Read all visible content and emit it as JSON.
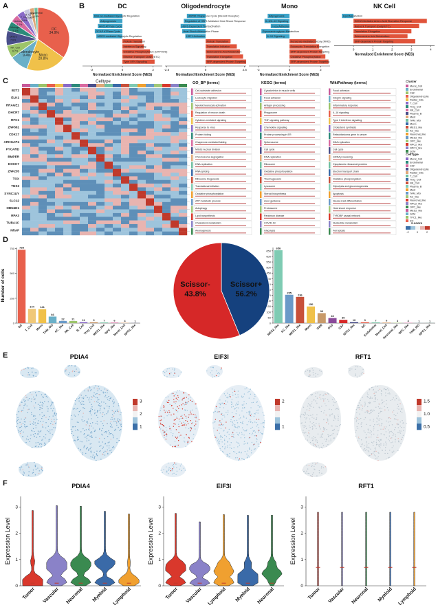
{
  "panels": {
    "A": "A",
    "B": "B",
    "C": "C",
    "D": "D",
    "E": "E",
    "F": "F"
  },
  "panel_a": {
    "slices": [
      {
        "label": "DC",
        "pct": "34.9%",
        "value": 34.9,
        "color": "#e8604c"
      },
      {
        "label": "Mono",
        "pct": "20.8%",
        "value": 20.8,
        "color": "#f0c14a"
      },
      {
        "label": "Oligodendrocyte",
        "pct": "9.4%",
        "value": 9.4,
        "color": "#6ab0c8"
      },
      {
        "label": "NK_Cell",
        "pct": "6.7%",
        "value": 6.7,
        "color": "#9cc46a"
      },
      {
        "label": "Others",
        "pct": "7.6%",
        "value": 7.6,
        "color": "#4a4f8a"
      },
      {
        "label": "Microglia",
        "pct": "5.1%",
        "value": 5.1,
        "color": "#2c8a7a"
      },
      {
        "label": "Astrocyte",
        "pct": "4.2%",
        "value": 4.2,
        "color": "#d96aa0"
      },
      {
        "label": "T_Cell",
        "pct": "3.9%",
        "value": 3.9,
        "color": "#8a6ac8"
      },
      {
        "label": "B_Cell",
        "pct": "3.1%",
        "value": 3.1,
        "color": "#c8c8e0"
      },
      {
        "label": "Mural",
        "pct": "2.4%",
        "value": 2.4,
        "color": "#e0a878"
      },
      {
        "label": "Endothelial",
        "pct": "1.9%",
        "value": 1.9,
        "color": "#70c0a0"
      }
    ]
  },
  "panel_b": {
    "xlabel": "Normalized Enrichment Score (NES)",
    "groups": [
      {
        "title": "DC",
        "ticks": [
          "-2",
          "0",
          "2"
        ],
        "bars": [
          {
            "term": "BILL1A-mediated Glycolytic Regulation",
            "nes": -1.9
          },
          {
            "term": "Adipogenesis",
            "nes": -1.5
          },
          {
            "term": "Wnt5 ATPase Cycle",
            "nes": -1.6
          },
          {
            "term": "GCAP ATPase Cycle",
            "nes": -1.8
          },
          {
            "term": "MERS-mediated Glycolytic Regulation",
            "nes": -1.7
          },
          {
            "term": "Protein Translation",
            "nes": 1.3
          },
          {
            "term": "Interferon Signaling",
            "nes": 1.4
          },
          {
            "term": "Oxidative Phosphorylation (OXPHOS)",
            "nes": 1.8
          },
          {
            "term": "Electron Transport Chain (ETC)",
            "nes": 2.0
          },
          {
            "term": "Type I IFN Signaling",
            "nes": 2.1
          }
        ]
      },
      {
        "title": "Oligodendrocyte",
        "ticks": [
          "-2.5",
          "0",
          "2.5"
        ],
        "bars": [
          {
            "term": "HSP90 Chaperone Cycle (Steroid Receptor)",
            "nes": -1.2
          },
          {
            "term": "Regulation of HSF1 Mediated Heat Shock Response",
            "nes": -1.4
          },
          {
            "term": "HSF1-Dependent Transactivation",
            "nes": -1.6
          },
          {
            "term": "Heat Shock Attenuation Phase",
            "nes": -1.5
          },
          {
            "term": "HSF1 Activation",
            "nes": -1.3
          },
          {
            "term": "Protein Translation",
            "nes": 1.6
          },
          {
            "term": "Translation Initiation",
            "nes": 2.0
          },
          {
            "term": "Selenoamino Acid Metabolism",
            "nes": 2.2
          },
          {
            "term": "Translation Elongation",
            "nes": 2.4
          },
          {
            "term": "SRP-dependent Protein Targeting",
            "nes": 2.6
          }
        ]
      },
      {
        "title": "Mono",
        "ticks": [
          "-2",
          "0",
          "2"
        ],
        "bars": [
          {
            "term": "Adipogenesis",
            "nes": -1.4
          },
          {
            "term": "IL-6/IL-10 Signaling",
            "nes": -1.6
          },
          {
            "term": "Focal Adhesion",
            "nes": -1.2
          },
          {
            "term": "Glycosaminoglycan Metabolism",
            "nes": -1.8
          },
          {
            "term": "IL-10 Signaling",
            "nes": -1.5
          },
          {
            "term": "Nonsense-mediated Decay (NMD)",
            "nes": 1.7
          },
          {
            "term": "Eukaryotic Translation Elongation",
            "nes": 1.9
          },
          {
            "term": "SRP-dependent Protein Targeting",
            "nes": 2.1
          },
          {
            "term": "Oxidative Phosphorylation",
            "nes": 2.3
          },
          {
            "term": "SRP-dependent Protein Targeting",
            "nes": 2.5
          }
        ]
      },
      {
        "title": "NK Cell",
        "ticks": [
          "0",
          "1",
          "2",
          "3",
          "4"
        ],
        "bars": [
          {
            "term": "Lipid Metabolism",
            "nes": -0.6
          },
          {
            "term": "GCN2-Mediated Amino Acid Starvation Response",
            "nes": 3.8
          },
          {
            "term": "Nascent Transport (Golgi ETC)",
            "nes": 3.4
          },
          {
            "term": "Translation Elongation",
            "nes": 3.0
          },
          {
            "term": "Selenoamino Acid Metabolism",
            "nes": 2.8
          },
          {
            "term": "SRP-dependent Protein Targeting",
            "nes": 3.2
          }
        ]
      }
    ]
  },
  "panel_c": {
    "celltype_title": "Celltype",
    "col_headers": [
      "GO_BP (terms)",
      "KEGG (terms)",
      "WikiPathway (terms)"
    ],
    "genes": [
      "B2T2",
      "ELK1",
      "RRAGE1",
      "DHCR7",
      "RFC1",
      "ZNF561",
      "CDK17",
      "ARHGAP4",
      "PYCARD",
      "BMPER",
      "DOCK7",
      "ZNF235",
      "TOX",
      "TNS3",
      "SYNC1UY",
      "SLC12",
      "OBN4D1",
      "RPA3",
      "TUBA1C",
      "NRAF"
    ],
    "legend_cluster_title": "Cluster",
    "legend_celltype_title": "CellType",
    "legend_zscore_title": "z-score",
    "cluster_items": [
      "Mural_Cell",
      "Endothelial",
      "CAF",
      "Oligodendrocyte",
      "Radial_Glia",
      "T_Cell",
      "Treg_Cell",
      "NK_Cell",
      "Plasma_B",
      "Mast",
      "TAM_MG",
      "Mono",
      "MES1_like",
      "AC_like",
      "Neuronal_like",
      "MES2_like",
      "OPC_like",
      "NPC2_like",
      "NPC1_like",
      "G2M"
    ],
    "celltype_items": [
      "Mural_Cell",
      "Endothelial",
      "CAF",
      "Oligodendrocyte",
      "Radial_Glia",
      "T_Cell",
      "Treg_Cell",
      "NK_Cell",
      "Plasma_B",
      "Mast",
      "TAM_MG",
      "AC_like",
      "Neuronal_like",
      "NPC2_like",
      "OPC_like",
      "MES2_like",
      "G2M",
      "TPC1_like",
      "DC"
    ],
    "zscore_ticks": [
      "-2",
      "0",
      "2"
    ],
    "go_terms": [
      "Cell-substrate adhesion",
      "Leukocyte migration",
      "Myeloid leukocyte activation",
      "Regulation of neuron death",
      "Cytokine-mediated signaling",
      "Response to virus",
      "Protein folding",
      "Chaperone-mediated folding",
      "Mitotic nuclear division",
      "Chromosome segregation",
      "DNA replication",
      "RNA splicing",
      "Ribosome biogenesis",
      "Translational initiation",
      "Oxidative phosphorylation",
      "ATP metabolic process",
      "Autophagy",
      "Lipid biosynthesis",
      "Cholesterol metabolism",
      "Axonogenesis"
    ],
    "kegg_terms": [
      "Cytoskeleton in muscle cells",
      "Focal adhesion",
      "Antigen processing",
      "Phagosome",
      "TNF signaling pathway",
      "Chemokine signaling",
      "Protein processing in ER",
      "Spliceosome",
      "Cell cycle",
      "DNA replication",
      "Ribosome",
      "Oxidative phosphorylation",
      "Thermogenesis",
      "Lysosome",
      "Steroid biosynthesis",
      "Axon guidance",
      "Proteasome",
      "Parkinson disease",
      "COVID-19",
      "Glycolysis"
    ],
    "wiki_terms": [
      "Focal adhesion",
      "Integrin signaling",
      "Inflammatory response",
      "IL-18 signaling",
      "Type II interferon signaling",
      "Cholesterol synthesis",
      "Retinoblastoma gene in cancer",
      "DNA replication",
      "Cell cycle",
      "mRNA processing",
      "Cytoplasmic ribosomal proteins",
      "Electron transport chain",
      "Oxidative phosphorylation",
      "Glycolysis and gluconeogenesis",
      "Apoptosis",
      "Neural crest differentiation",
      "Heat shock response",
      "TYROBP causal network",
      "Nucleotide metabolism",
      "Ferroptosis"
    ]
  },
  "panel_d": {
    "left_ylabel": "Number of cells",
    "left_bars": [
      {
        "label": "DC",
        "value": 738,
        "color": "#e8604c"
      },
      {
        "label": "T_Cell",
        "value": 144,
        "color": "#f0c878"
      },
      {
        "label": "Mono",
        "value": 141,
        "color": "#f0c14a"
      },
      {
        "label": "TAM_MG",
        "value": 66,
        "color": "#6ab0c8"
      },
      {
        "label": "AC_like",
        "value": 22,
        "color": "#6a9ac8"
      },
      {
        "label": "NK_Cell",
        "value": 21,
        "color": "#9cc46a"
      },
      {
        "label": "B_Cell",
        "value": 11,
        "color": "#8a6ac8"
      },
      {
        "label": "Treg_Cell",
        "value": 9,
        "color": "#c08a5a"
      },
      {
        "label": "MES1_like",
        "value": 7,
        "color": "#70c0a0"
      },
      {
        "label": "OPC_like",
        "value": 6,
        "color": "#d96aa0"
      },
      {
        "label": "Mural_Cell",
        "value": 4,
        "color": "#e0a878"
      },
      {
        "label": "NPC2_like",
        "value": 1,
        "color": "#4a4f8a"
      }
    ],
    "left_yticks": [
      "0",
      "250",
      "500",
      "750"
    ],
    "pie": [
      {
        "label": "Scissor-",
        "pct": "43.8%",
        "value": 43.8,
        "color": "#15417e"
      },
      {
        "label": "Scissor+",
        "pct": "56.2%",
        "value": 56.2,
        "color": "#d62828"
      }
    ],
    "right_ylabel": "Number of cells",
    "right_bars": [
      {
        "label": "MES2_like",
        "value": 656,
        "color": "#7fcbb3"
      },
      {
        "label": "AC_like",
        "value": 255,
        "color": "#6a9ac8"
      },
      {
        "label": "MES1_like",
        "value": 236,
        "color": "#c8503a"
      },
      {
        "label": "Mono",
        "value": 150,
        "color": "#f0c14a"
      },
      {
        "label": "G2M",
        "value": 90,
        "color": "#c89a6a"
      },
      {
        "label": "G1S",
        "value": 46,
        "color": "#8a4a9a"
      },
      {
        "label": "CAF",
        "value": 30,
        "color": "#d62828"
      },
      {
        "label": "NPC2_like",
        "value": 10,
        "color": "#4a4f8a"
      },
      {
        "label": "DC",
        "value": 9,
        "color": "#e8604c"
      },
      {
        "label": "Endothelial",
        "value": 7,
        "color": "#70c0a0"
      },
      {
        "label": "Mural_Cell",
        "value": 6,
        "color": "#e0a878"
      },
      {
        "label": "Neuronal_like",
        "value": 3,
        "color": "#9cc46a"
      },
      {
        "label": "OPC_like",
        "value": 3,
        "color": "#d96aa0"
      },
      {
        "label": "TAM_MG",
        "value": 1,
        "color": "#6ab0c8"
      },
      {
        "label": "NPC1_like",
        "value": 1,
        "color": "#2c8a7a"
      }
    ],
    "right_yticks": [
      "0",
      "50",
      "100",
      "150",
      "200",
      "250",
      "300",
      "350",
      "400",
      "450",
      "500",
      "550",
      "600",
      "650"
    ]
  },
  "panel_e": {
    "features": [
      {
        "title": "PDIA4",
        "ticks": [
          "3",
          "2",
          "1"
        ]
      },
      {
        "title": "EIF3I",
        "ticks": [
          "2",
          "1"
        ]
      },
      {
        "title": "RFT1",
        "ticks": [
          "1.5",
          "1.0",
          "0.5"
        ]
      }
    ]
  },
  "panel_f": {
    "ylabel": "Expression Level",
    "plots": [
      {
        "title": "PDIA4",
        "yticks": [
          "0",
          "1",
          "2",
          "3"
        ],
        "groups": [
          {
            "label": "Tumor",
            "color": "#d9382c"
          },
          {
            "label": "Vascular",
            "color": "#8a82c8"
          },
          {
            "label": "Neuronal",
            "color": "#3a8a50"
          },
          {
            "label": "Myeloid",
            "color": "#3a6aa8"
          },
          {
            "label": "Lymphoid",
            "color": "#f0a030"
          }
        ]
      },
      {
        "title": "EIF3I",
        "yticks": [
          "0",
          "1",
          "2",
          "3"
        ],
        "groups": [
          {
            "label": "Tumor",
            "color": "#d9382c"
          },
          {
            "label": "Vascular",
            "color": "#8a82c8"
          },
          {
            "label": "Lymphoid",
            "color": "#f0a030"
          },
          {
            "label": "Myeloid",
            "color": "#3a6aa8"
          },
          {
            "label": "Neuronal",
            "color": "#3a8a50"
          }
        ]
      },
      {
        "title": "RFT1",
        "yticks": [
          "0",
          "1",
          "2",
          "3"
        ],
        "groups": [
          {
            "label": "Tumor",
            "color": "#d9382c"
          },
          {
            "label": "Vascular",
            "color": "#8a82c8"
          },
          {
            "label": "Neuronal",
            "color": "#3a8a50"
          },
          {
            "label": "Myeloid",
            "color": "#3a6aa8"
          },
          {
            "label": "Lymphoid",
            "color": "#f0a030"
          }
        ]
      }
    ]
  }
}
